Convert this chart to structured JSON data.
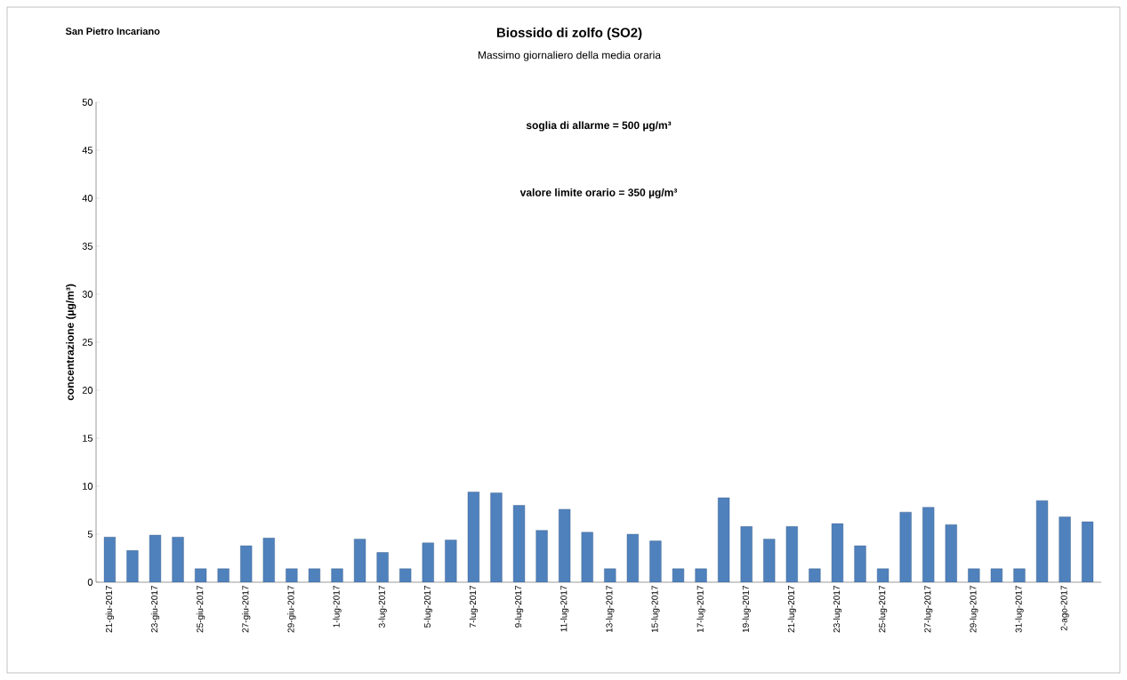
{
  "chart_data": {
    "type": "bar",
    "title": "Biossido di zolfo (SO2)",
    "subtitle": "Massimo giornaliero della media oraria",
    "ylabel": "concentrazione (µg/m³)",
    "annotations": [
      "San Pietro Incariano",
      "soglia di allarme = 500 µg/m³",
      "valore limite orario = 350 µg/m³"
    ],
    "categories": [
      "21-giu-2017",
      null,
      "23-giu-2017",
      null,
      "25-giu-2017",
      null,
      "27-giu-2017",
      null,
      "29-giu-2017",
      null,
      "1-lug-2017",
      null,
      "3-lug-2017",
      null,
      "5-lug-2017",
      null,
      "7-lug-2017",
      null,
      "9-lug-2017",
      null,
      "11-lug-2017",
      null,
      "13-lug-2017",
      null,
      "15-lug-2017",
      null,
      "17-lug-2017",
      null,
      "19-lug-2017",
      null,
      "21-lug-2017",
      null,
      "23-lug-2017",
      null,
      "25-lug-2017",
      null,
      "27-lug-2017",
      null,
      "29-lug-2017",
      null,
      "31-lug-2017",
      null,
      "2-ago-2017",
      null
    ],
    "values": [
      4.7,
      3.3,
      4.9,
      4.7,
      1.4,
      1.4,
      3.8,
      4.6,
      1.4,
      1.4,
      1.4,
      4.5,
      3.1,
      1.4,
      4.1,
      4.4,
      9.4,
      9.3,
      8.0,
      5.4,
      7.6,
      5.2,
      1.4,
      5.0,
      4.3,
      1.4,
      1.4,
      8.8,
      5.8,
      4.5,
      5.8,
      1.4,
      6.1,
      3.8,
      1.4,
      7.3,
      7.8,
      6.0,
      1.4,
      1.4,
      1.4,
      8.5,
      6.8,
      6.3
    ],
    "color": "#4f81bd",
    "ylim": [
      0,
      50
    ],
    "yticks": [
      0,
      5,
      10,
      15,
      20,
      25,
      30,
      35,
      40,
      45,
      50
    ],
    "grid": false
  }
}
